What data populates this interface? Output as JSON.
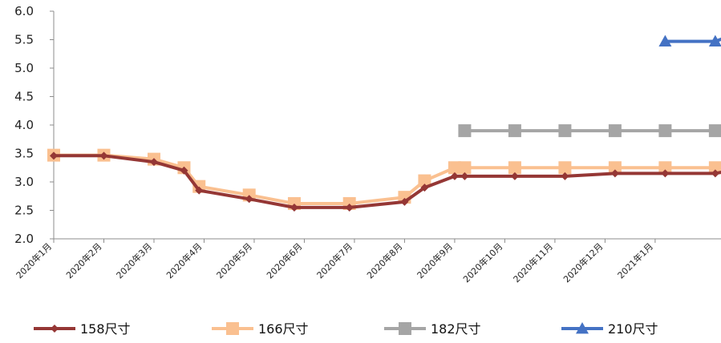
{
  "chart_data": {
    "type": "line",
    "title": "",
    "xlabel": "",
    "ylabel": "",
    "ylim": [
      2.0,
      6.0
    ],
    "yticks": [
      "2.0",
      "2.5",
      "3.0",
      "3.5",
      "4.0",
      "4.5",
      "5.0",
      "5.5",
      "6.0"
    ],
    "categories": [
      "2020年1月",
      "2020年2月",
      "2020年3月",
      "2020年4月",
      "2020年5月",
      "2020年6月",
      "2020年7月",
      "2020年8月",
      "2020年9月",
      "2020年10月",
      "2020年11月",
      "2020年12月",
      "2021年1月"
    ],
    "grid": false,
    "legend_position": "bottom",
    "series": [
      {
        "name": "158尺寸",
        "color": "#953735",
        "marker": "diamond",
        "points": [
          [
            0,
            3.46
          ],
          [
            1,
            3.46
          ],
          [
            2,
            3.35
          ],
          [
            2.6,
            3.2
          ],
          [
            2.9,
            2.85
          ],
          [
            3.9,
            2.7
          ],
          [
            4.8,
            2.55
          ],
          [
            5.9,
            2.55
          ],
          [
            7,
            2.65
          ],
          [
            7.4,
            2.9
          ],
          [
            8,
            3.1
          ],
          [
            8.2,
            3.1
          ],
          [
            9.2,
            3.1
          ],
          [
            10.2,
            3.1
          ],
          [
            11.2,
            3.15
          ],
          [
            12.2,
            3.15
          ],
          [
            13.2,
            3.15
          ],
          [
            13.6,
            3.22
          ]
        ]
      },
      {
        "name": "166尺寸",
        "color": "#FAC090",
        "marker": "square",
        "points": [
          [
            0,
            3.47
          ],
          [
            1,
            3.47
          ],
          [
            2,
            3.4
          ],
          [
            2.6,
            3.25
          ],
          [
            2.9,
            2.92
          ],
          [
            3.9,
            2.77
          ],
          [
            4.8,
            2.62
          ],
          [
            5.9,
            2.62
          ],
          [
            7,
            2.73
          ],
          [
            7.4,
            3.02
          ],
          [
            8,
            3.25
          ],
          [
            8.2,
            3.25
          ],
          [
            9.2,
            3.25
          ],
          [
            10.2,
            3.25
          ],
          [
            11.2,
            3.25
          ],
          [
            12.2,
            3.25
          ],
          [
            13.2,
            3.25
          ],
          [
            13.6,
            3.33
          ]
        ]
      },
      {
        "name": "182尺寸",
        "color": "#A5A5A5",
        "marker": "square",
        "points": [
          [
            8.2,
            3.9
          ],
          [
            9.2,
            3.9
          ],
          [
            10.2,
            3.9
          ],
          [
            11.2,
            3.9
          ],
          [
            12.2,
            3.9
          ],
          [
            13.2,
            3.9
          ],
          [
            13.6,
            4.05
          ]
        ]
      },
      {
        "name": "210尺寸",
        "color": "#4472C4",
        "marker": "triangle",
        "points": [
          [
            12.2,
            5.47
          ],
          [
            13.2,
            5.47
          ],
          [
            13.6,
            5.6
          ]
        ]
      }
    ]
  }
}
